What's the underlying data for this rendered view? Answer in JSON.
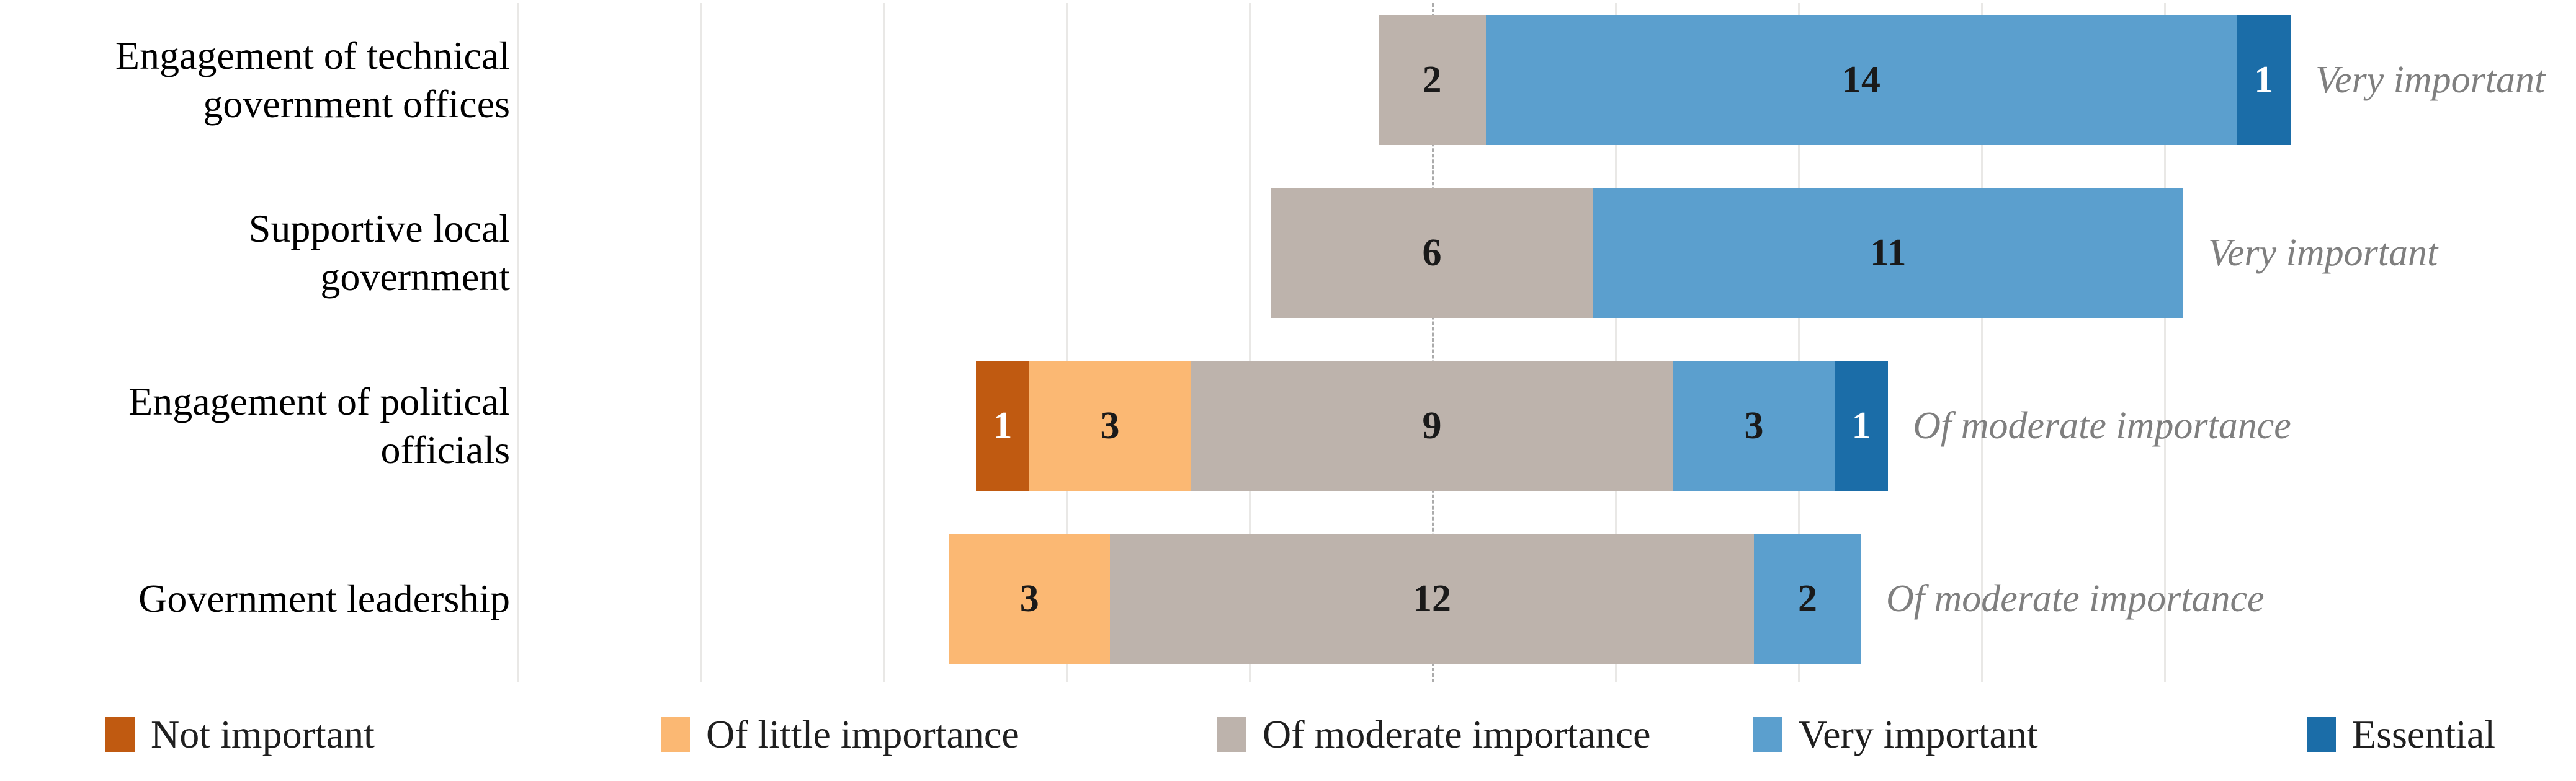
{
  "chart_data": {
    "type": "bar",
    "orientation": "horizontal",
    "subtype": "diverging-stacked-likert",
    "title": "",
    "categories": [
      "Engagement of technical government offices",
      "Supportive local government",
      "Engagement of political officials",
      "Government leadership"
    ],
    "series": [
      {
        "name": "Not important",
        "color": "#C05A11",
        "value_text_color": "#ffffff",
        "values": [
          0,
          0,
          1,
          0
        ]
      },
      {
        "name": "Of little importance",
        "color": "#FBB873",
        "value_text_color": "#1a1a1a",
        "values": [
          0,
          0,
          3,
          3
        ]
      },
      {
        "name": "Of moderate importance",
        "color": "#BDB3AC",
        "value_text_color": "#1a1a1a",
        "values": [
          2,
          6,
          9,
          12
        ]
      },
      {
        "name": "Very important",
        "color": "#5B9FCE",
        "value_text_color": "#1a1a1a",
        "values": [
          14,
          11,
          3,
          2
        ]
      },
      {
        "name": "Essential",
        "color": "#1B6DA8",
        "value_text_color": "#ffffff",
        "values": [
          1,
          0,
          1,
          0
        ]
      }
    ],
    "row_totals": [
      17,
      17,
      17,
      17
    ],
    "row_annotations": [
      "Very important",
      "Very important",
      "Of moderate importance",
      "Of moderate importance"
    ],
    "legend": [
      "Not important",
      "Of little importance",
      "Of moderate importance",
      "Very important",
      "Essential"
    ],
    "legend_position": "bottom",
    "alignment": "bars centered on midpoint of the 'Of moderate importance' segment",
    "center_line_style": "dashed",
    "grid": true,
    "gridline_interval_percent_of_total": 20,
    "xlim_percent_of_total": [
      -100,
      80
    ],
    "colors": {
      "gridline": "#E9E8E6",
      "center_line": "#ABABAB",
      "annotation_text": "#7F7F7F",
      "category_text": "#000000",
      "legend_text": "#1F1F1F",
      "background": "#FFFFFF"
    }
  }
}
